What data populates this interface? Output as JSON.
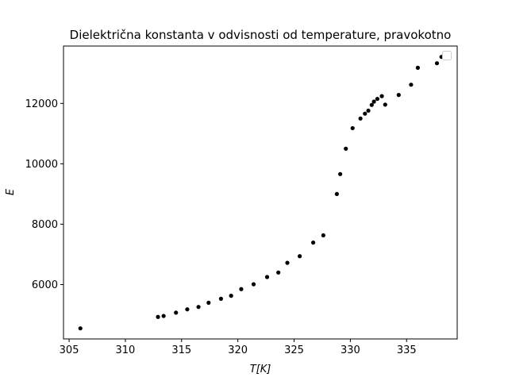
{
  "chart_data": {
    "type": "scatter",
    "title": "Dielektrična konstanta v odvisnosti od temperature, pravokotno",
    "xlabel": "T[K]",
    "ylabel": "E",
    "xlim": [
      304.5,
      339.5
    ],
    "ylim": [
      4200,
      13900
    ],
    "xticks": [
      305,
      310,
      315,
      320,
      325,
      330,
      335
    ],
    "yticks": [
      6000,
      8000,
      10000,
      12000
    ],
    "xtick_labels": [
      "305",
      "310",
      "315",
      "320",
      "325",
      "330",
      "335"
    ],
    "ytick_labels": [
      "6000",
      "8000",
      "10000",
      "12000"
    ],
    "grid": false,
    "legend": "top-right (empty)",
    "marker_color": "#000000",
    "series": [
      {
        "x": [
          306.0,
          312.9,
          313.4,
          314.5,
          315.5,
          316.5,
          317.4,
          318.5,
          319.4,
          320.3,
          321.4,
          322.6,
          323.6,
          324.4,
          325.5,
          326.7,
          327.6,
          328.8,
          329.1,
          329.6,
          330.2,
          330.9,
          331.3,
          331.6,
          331.9,
          332.1,
          332.4,
          332.8,
          333.1,
          334.3,
          335.4,
          336.0,
          337.7,
          338.1
        ],
        "y": [
          4550,
          4930,
          4960,
          5070,
          5180,
          5260,
          5400,
          5530,
          5630,
          5850,
          6010,
          6250,
          6400,
          6720,
          6940,
          7390,
          7630,
          9000,
          9660,
          10500,
          11180,
          11500,
          11660,
          11760,
          11950,
          12060,
          12150,
          12240,
          11960,
          12280,
          12620,
          13180,
          13330,
          13540
        ]
      }
    ]
  }
}
